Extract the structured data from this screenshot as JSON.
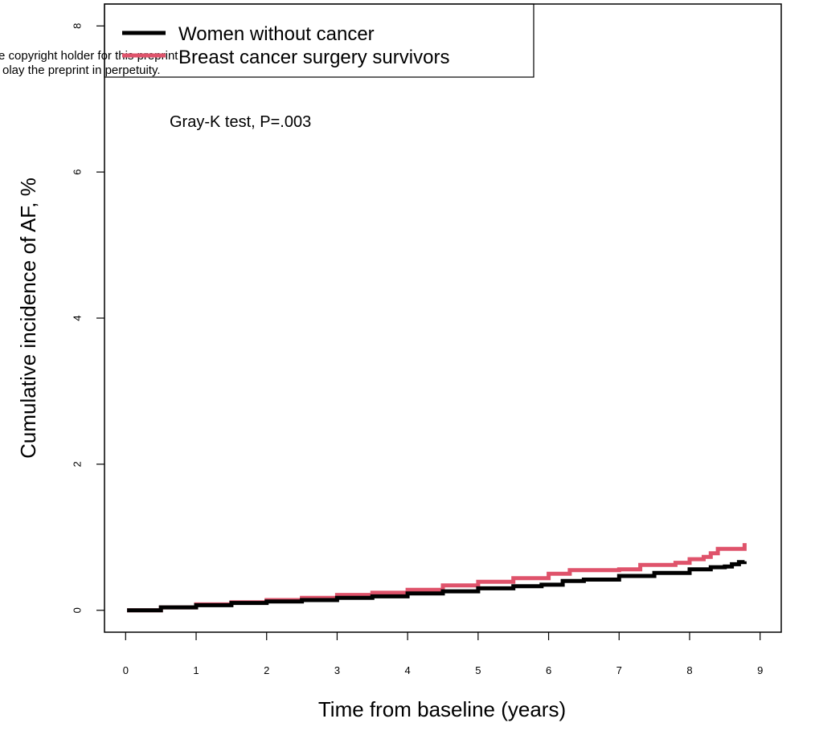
{
  "chart_data": {
    "type": "line",
    "title": "",
    "xlabel": "Time from baseline (years)",
    "ylabel": "Cumulative incidence of AF, %",
    "xlim": [
      -0.3,
      9.3
    ],
    "ylim": [
      -0.3,
      8.3
    ],
    "x_ticks": [
      "0",
      "1",
      "2",
      "3",
      "4",
      "5",
      "6",
      "7",
      "8",
      "9"
    ],
    "y_ticks": [
      "0",
      "2",
      "4",
      "6",
      "8"
    ],
    "grid": false,
    "legend_position": "top-left",
    "annotation": "Gray-K test, P=.003",
    "series": [
      {
        "name": "Women without cancer",
        "color": "#000000",
        "points": [
          [
            0.02,
            0
          ],
          [
            0.5,
            0.04
          ],
          [
            1,
            0.07
          ],
          [
            1.5,
            0.1
          ],
          [
            2,
            0.12
          ],
          [
            2.5,
            0.14
          ],
          [
            3,
            0.17
          ],
          [
            3.5,
            0.19
          ],
          [
            4,
            0.23
          ],
          [
            4.5,
            0.26
          ],
          [
            5,
            0.3
          ],
          [
            5.5,
            0.33
          ],
          [
            5.9,
            0.35
          ],
          [
            6.2,
            0.4
          ],
          [
            6.5,
            0.42
          ],
          [
            7,
            0.47
          ],
          [
            7.5,
            0.51
          ],
          [
            8,
            0.56
          ],
          [
            8.3,
            0.59
          ],
          [
            8.5,
            0.6
          ],
          [
            8.6,
            0.63
          ],
          [
            8.7,
            0.66
          ],
          [
            8.78,
            0.67
          ]
        ]
      },
      {
        "name": "Breast cancer surgery survivors",
        "color": "#DF536B",
        "points": [
          [
            0.02,
            0
          ],
          [
            0.5,
            0.04
          ],
          [
            1,
            0.08
          ],
          [
            1.5,
            0.11
          ],
          [
            2,
            0.14
          ],
          [
            2.5,
            0.17
          ],
          [
            3,
            0.21
          ],
          [
            3.5,
            0.24
          ],
          [
            4,
            0.28
          ],
          [
            4.5,
            0.34
          ],
          [
            5,
            0.39
          ],
          [
            5.5,
            0.44
          ],
          [
            6,
            0.5
          ],
          [
            6.3,
            0.55
          ],
          [
            7,
            0.56
          ],
          [
            7.3,
            0.62
          ],
          [
            7.8,
            0.65
          ],
          [
            8,
            0.7
          ],
          [
            8.2,
            0.73
          ],
          [
            8.3,
            0.78
          ],
          [
            8.4,
            0.84
          ],
          [
            8.78,
            0.84
          ],
          [
            8.78,
            0.92
          ]
        ]
      }
    ]
  },
  "watermark": {
    "line1": "e copyright holder for this preprint",
    "line2": "olay the preprint in perpetuity."
  },
  "colors": {
    "series_black": "#000000",
    "series_red": "#DF536B",
    "frame": "#000000"
  }
}
